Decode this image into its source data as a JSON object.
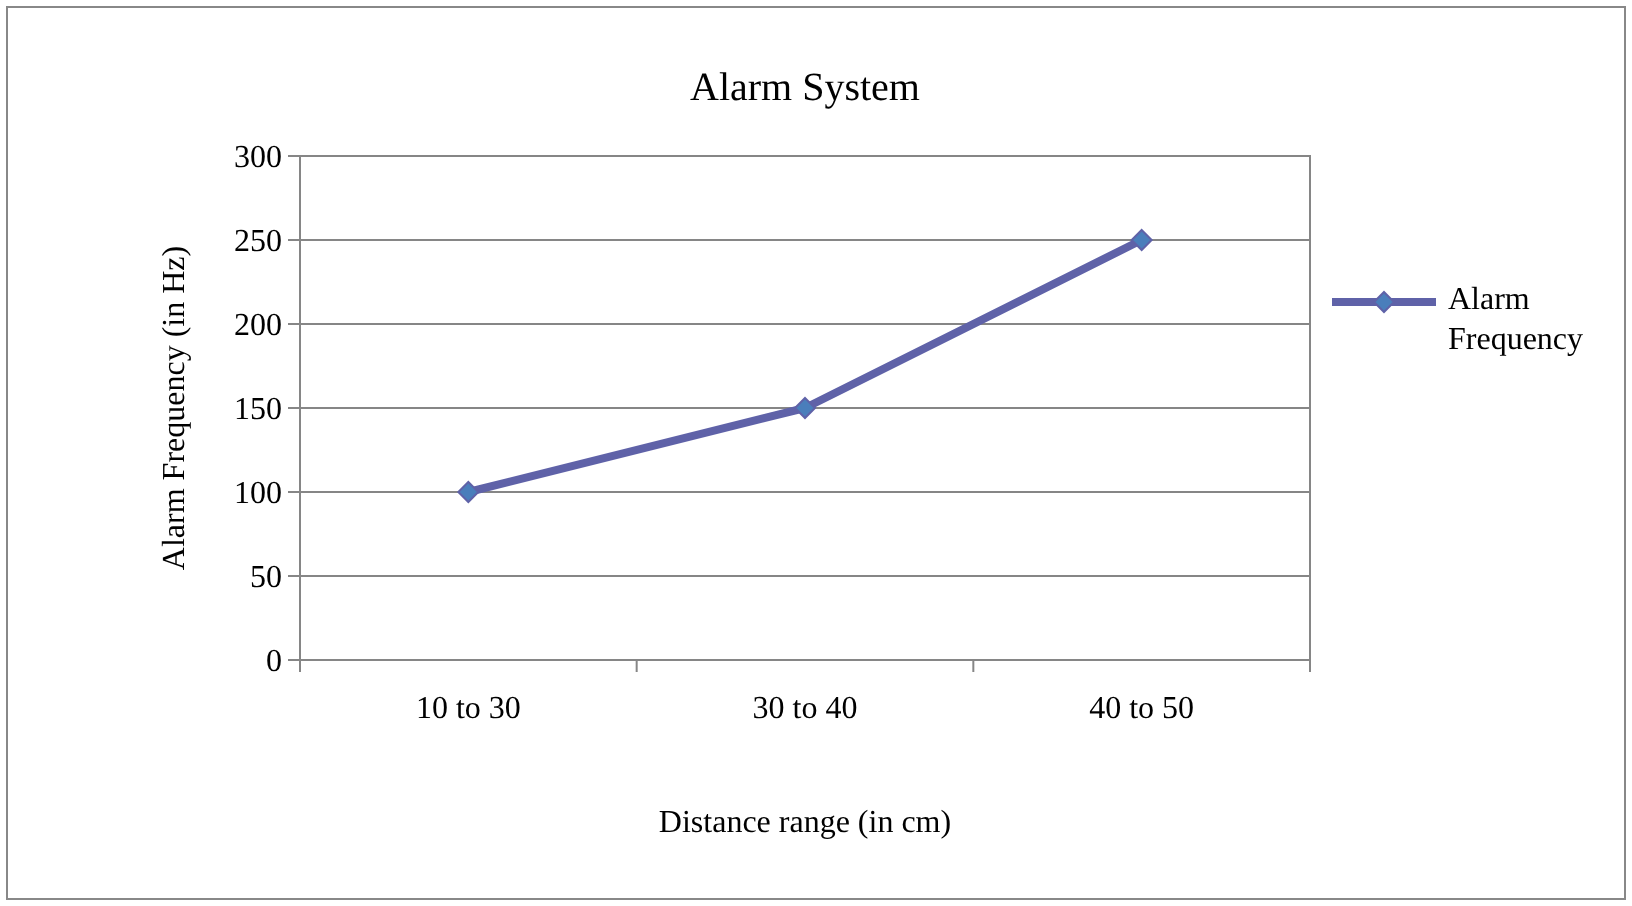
{
  "chart_data": {
    "type": "line",
    "title": "Alarm System",
    "xlabel": "Distance range (in cm)",
    "ylabel": "Alarm Frequency (in Hz)",
    "categories": [
      "10 to 30",
      "30 to 40",
      "40 to 50"
    ],
    "series": [
      {
        "name": "Alarm Frequency",
        "color": "#5f62a8",
        "values": [
          100,
          150,
          250
        ]
      }
    ],
    "ylim": [
      0,
      300
    ],
    "yticks": [
      0,
      50,
      100,
      150,
      200,
      250,
      300
    ],
    "grid": "y",
    "legend": "right",
    "marker": "diamond",
    "line_style": "solid"
  }
}
